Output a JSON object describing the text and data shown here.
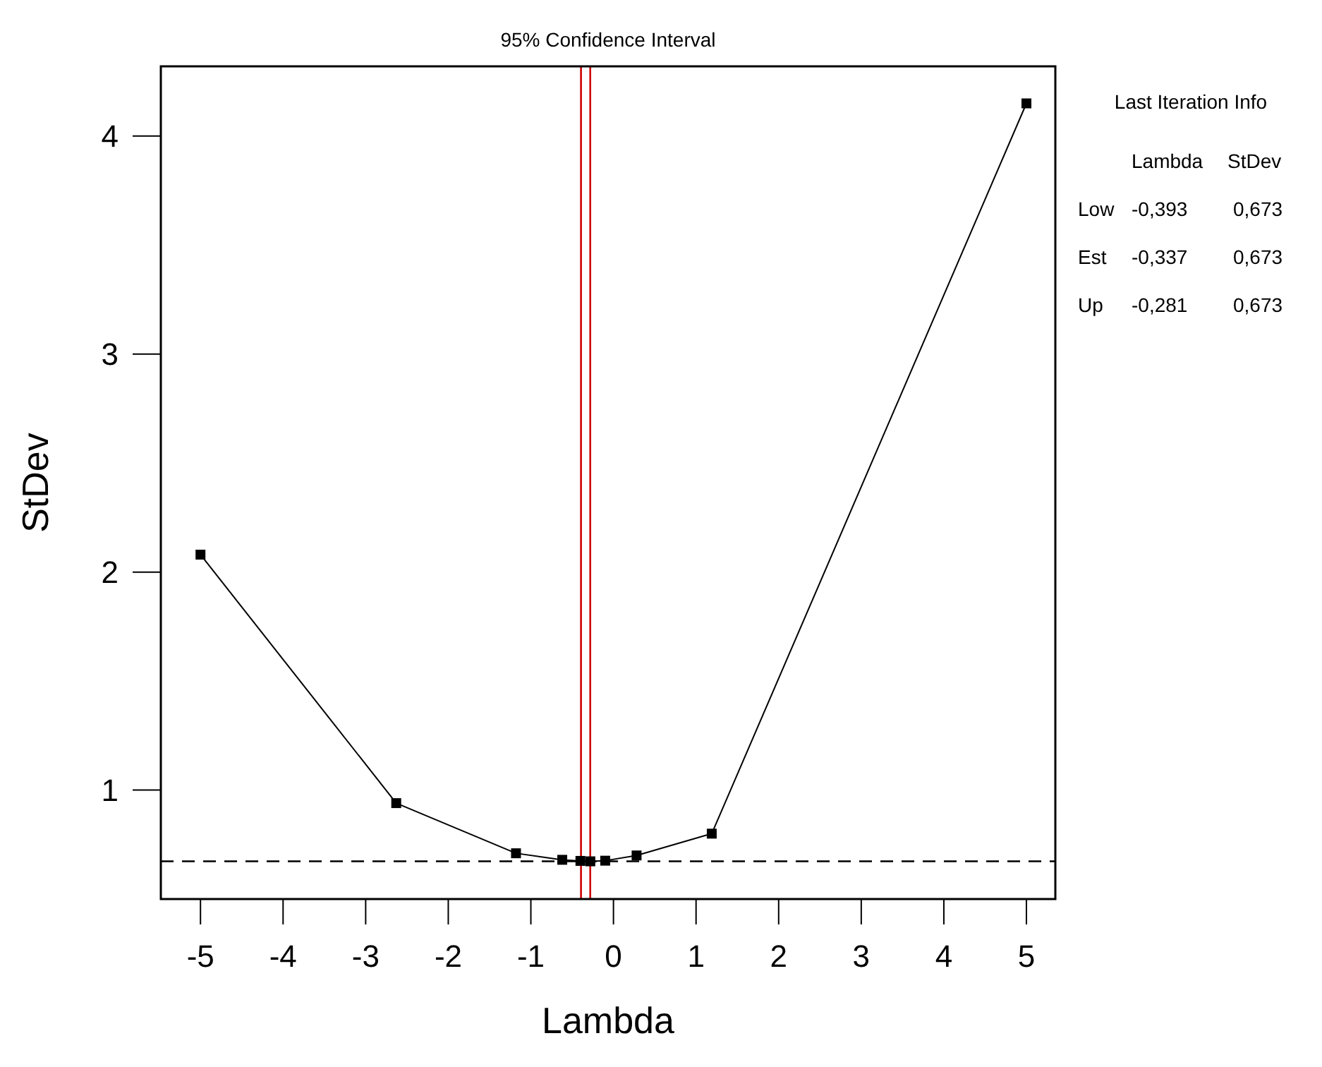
{
  "chart_data": {
    "type": "line",
    "title": "95% Confidence Interval",
    "xlabel": "Lambda",
    "ylabel": "StDev",
    "x": [
      -5,
      -2.63,
      -1.18,
      -0.62,
      -0.4,
      -0.34,
      -0.28,
      -0.16,
      -0.1,
      0.28,
      1.19,
      5
    ],
    "series": [
      {
        "color": "#000000",
        "values": [
          2.08,
          0.94,
          0.71,
          0.68,
          0.675,
          null,
          0.673,
          null,
          0.676,
          0.7,
          0.8,
          4.15
        ]
      }
    ],
    "marker": "square",
    "line_style": "solid",
    "grid": false,
    "xlim": [
      -5.48,
      5.35
    ],
    "ylim": [
      0.5,
      4.32
    ],
    "xticks": [
      -5,
      -4,
      -3,
      -2,
      -1,
      0,
      1,
      2,
      3,
      4,
      5
    ],
    "yticks": [
      1,
      2,
      3,
      4
    ],
    "ref_lines": [
      {
        "axis": "y",
        "value": 0.673,
        "color": "#000000",
        "line_style": "dashed"
      },
      {
        "axis": "x",
        "value": -0.393,
        "color": "#cc0000",
        "line_style": "solid"
      },
      {
        "axis": "x",
        "value": -0.281,
        "color": "#cc0000",
        "line_style": "solid"
      }
    ],
    "annotations": [
      "Last Iteration Info",
      "Lambda",
      "StDev",
      "Low",
      "-0,393",
      "0,673",
      "Est",
      "-0,337",
      "0,673",
      "Up",
      "-0,281",
      "0,673"
    ]
  }
}
